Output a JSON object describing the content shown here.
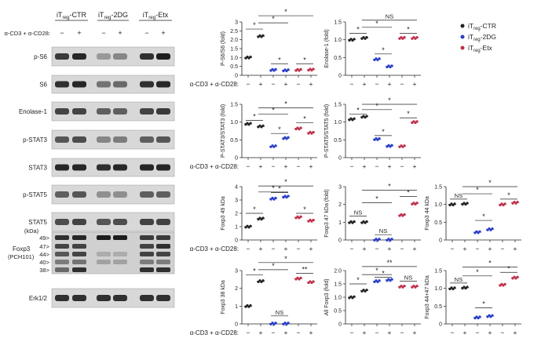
{
  "blot": {
    "groups": [
      {
        "name": "iTreg-CTR",
        "base": "iT",
        "sub": "reg",
        "suffix": "-CTR",
        "color": "#222222"
      },
      {
        "name": "iTreg-2DG",
        "base": "iT",
        "sub": "reg",
        "suffix": "-2DG",
        "color": "#2a3ec8"
      },
      {
        "name": "iTreg-Etx",
        "base": "iT",
        "sub": "reg",
        "suffix": "-Etx",
        "color": "#c0304a"
      }
    ],
    "treatment_label": "α-CD3 + α-CD28:",
    "signs": [
      "−",
      "+",
      "−",
      "+",
      "−",
      "+"
    ],
    "kda_header": "(kDa)",
    "rows": [
      {
        "label": "p-S6",
        "bands": [
          0.75,
          0.85,
          0.25,
          0.35,
          0.8,
          0.9
        ]
      },
      {
        "label": "S6",
        "bands": [
          0.8,
          0.85,
          0.45,
          0.5,
          0.8,
          0.85
        ]
      },
      {
        "label": "Enolase-1",
        "bands": [
          0.7,
          0.7,
          0.55,
          0.55,
          0.7,
          0.75
        ]
      },
      {
        "label": "p-STAT3",
        "bands": [
          0.6,
          0.65,
          0.35,
          0.4,
          0.55,
          0.6
        ]
      },
      {
        "label": "STAT3",
        "bands": [
          0.85,
          0.85,
          0.8,
          0.85,
          0.85,
          0.85
        ]
      },
      {
        "label": "p-STAT5",
        "bands": [
          0.55,
          0.6,
          0.3,
          0.3,
          0.55,
          0.55
        ]
      },
      {
        "label": "STAT5",
        "bands": [
          0.65,
          0.7,
          0.6,
          0.65,
          0.7,
          0.7
        ]
      }
    ],
    "foxp3": {
      "label_line1": "Foxp3",
      "label_line2": "(PCH101)",
      "markers": [
        "49>",
        "47>",
        "44>",
        "40>",
        "38>"
      ]
    },
    "erk": {
      "label": "Erk1/2",
      "bands": [
        0.8,
        0.8,
        0.8,
        0.8,
        0.8,
        0.8
      ]
    }
  },
  "legend": [
    {
      "base": "iT",
      "sub": "reg",
      "suffix": "-CTR",
      "color": "#222222"
    },
    {
      "base": "iT",
      "sub": "reg",
      "suffix": "-2DG",
      "color": "#2a3ec8"
    },
    {
      "base": "iT",
      "sub": "reg",
      "suffix": "-Etx",
      "color": "#c0304a"
    }
  ],
  "x_signs": [
    "−",
    "+",
    "−",
    "+",
    "−",
    "+"
  ],
  "x_axis_label": "α-CD3 + α-CD28:",
  "chart_data": [
    {
      "type": "scatter",
      "ylabel": "P-S6/S6 (fold)",
      "ylim": [
        0,
        3
      ],
      "yticks": [
        "0",
        "0.5",
        "1.0",
        "1.5",
        "2.0",
        "2.5",
        "3"
      ],
      "values": [
        1.0,
        2.2,
        0.3,
        0.28,
        0.3,
        0.32
      ],
      "sig": [
        {
          "from": 0,
          "to": 1,
          "y": 2.6,
          "label": "*"
        },
        {
          "from": 1,
          "to": 3,
          "y": 2.95,
          "label": "*"
        },
        {
          "from": 1,
          "to": 5,
          "y": 3.35,
          "label": "*"
        },
        {
          "from": 2,
          "to": 3,
          "y": 0.65,
          "label": "*"
        },
        {
          "from": 4,
          "to": 5,
          "y": 0.65,
          "label": "*"
        }
      ]
    },
    {
      "type": "scatter",
      "ylabel": "Enolase-1 (fold)",
      "ylim": [
        0,
        1.5
      ],
      "yticks": [
        "0",
        "0.5",
        "1.0",
        "1.5"
      ],
      "values": [
        1.0,
        1.05,
        0.45,
        0.25,
        1.05,
        1.05
      ],
      "sig": [
        {
          "from": 0,
          "to": 1,
          "y": 1.18,
          "label": "*"
        },
        {
          "from": 1,
          "to": 3,
          "y": 1.35,
          "label": "*"
        },
        {
          "from": 1,
          "to": 5,
          "y": 1.55,
          "label": "NS"
        },
        {
          "from": 2,
          "to": 3,
          "y": 0.6,
          "label": "*"
        },
        {
          "from": 4,
          "to": 5,
          "y": 1.18,
          "label": "*"
        }
      ]
    },
    {
      "type": "scatter",
      "ylabel": "P-STAT3/STAT3 (fold)",
      "ylim": [
        0,
        1.5
      ],
      "yticks": [
        "0",
        "0.5",
        "1.0",
        "1.5"
      ],
      "values": [
        0.95,
        0.88,
        0.32,
        0.55,
        0.82,
        0.7
      ],
      "sig": [
        {
          "from": 0,
          "to": 1,
          "y": 1.05,
          "label": "*"
        },
        {
          "from": 1,
          "to": 3,
          "y": 1.22,
          "label": "*"
        },
        {
          "from": 1,
          "to": 5,
          "y": 1.4,
          "label": "*"
        },
        {
          "from": 2,
          "to": 3,
          "y": 0.68,
          "label": "*"
        },
        {
          "from": 4,
          "to": 5,
          "y": 0.98,
          "label": "*"
        }
      ]
    },
    {
      "type": "scatter",
      "ylabel": "P-STAT5/STAT5 (fold)",
      "ylim": [
        0,
        1.5
      ],
      "yticks": [
        "0",
        "0.5",
        "1.0",
        "1.5"
      ],
      "values": [
        1.08,
        1.15,
        0.52,
        0.33,
        0.32,
        1.0
      ],
      "sig": [
        {
          "from": 0,
          "to": 1,
          "y": 1.22,
          "label": "*"
        },
        {
          "from": 1,
          "to": 3,
          "y": 1.35,
          "label": "*"
        },
        {
          "from": 1,
          "to": 5,
          "y": 1.5,
          "label": "*"
        },
        {
          "from": 2,
          "to": 3,
          "y": 0.62,
          "label": "*"
        },
        {
          "from": 4,
          "to": 5,
          "y": 1.12,
          "label": "*"
        }
      ]
    },
    {
      "type": "scatter",
      "ylabel": "Foxp3 49 kDa",
      "ylim": [
        0,
        4
      ],
      "yticks": [
        "0",
        "1",
        "2",
        "3",
        "4"
      ],
      "values": [
        1.0,
        1.6,
        3.1,
        3.25,
        1.7,
        1.45
      ],
      "sig": [
        {
          "from": 0,
          "to": 1,
          "y": 2.0,
          "label": "*"
        },
        {
          "from": 1,
          "to": 3,
          "y": 3.6,
          "label": "*"
        },
        {
          "from": 1,
          "to": 5,
          "y": 4.05,
          "label": "*"
        },
        {
          "from": 2,
          "to": 3,
          "y": 3.55,
          "label": "*"
        },
        {
          "from": 4,
          "to": 5,
          "y": 2.0,
          "label": "*"
        }
      ]
    },
    {
      "type": "scatter",
      "ylabel": "Foxp3 47 kDa (fold)",
      "ylim": [
        0,
        3
      ],
      "yticks": [
        "0",
        "1",
        "2",
        "3"
      ],
      "values": [
        1.0,
        1.0,
        0.02,
        0.02,
        1.4,
        2.05
      ],
      "sig": [
        {
          "from": 0,
          "to": 1,
          "y": 1.35,
          "label": "NS"
        },
        {
          "from": 1,
          "to": 3,
          "y": 2.1,
          "label": "*"
        },
        {
          "from": 1,
          "to": 5,
          "y": 2.8,
          "label": "*"
        },
        {
          "from": 2,
          "to": 3,
          "y": 0.3,
          "label": "NS"
        },
        {
          "from": 4,
          "to": 5,
          "y": 2.45,
          "label": "*"
        }
      ]
    },
    {
      "type": "scatter",
      "ylabel": "Foxp3 44 kDa",
      "ylim": [
        0,
        1.5
      ],
      "yticks": [
        "0",
        "0.5",
        "1.0",
        "1.5"
      ],
      "values": [
        1.0,
        1.02,
        0.22,
        0.3,
        1.0,
        1.05
      ],
      "sig": [
        {
          "from": 0,
          "to": 1,
          "y": 1.15,
          "label": "NS"
        },
        {
          "from": 1,
          "to": 3,
          "y": 1.3,
          "label": "*"
        },
        {
          "from": 1,
          "to": 5,
          "y": 1.5,
          "label": "*"
        },
        {
          "from": 2,
          "to": 3,
          "y": 0.55,
          "label": "*"
        },
        {
          "from": 4,
          "to": 5,
          "y": 1.15,
          "label": "*"
        }
      ]
    },
    {
      "type": "scatter",
      "ylabel": "Foxp3 38 kDa",
      "ylim": [
        0,
        3
      ],
      "yticks": [
        "0",
        "1",
        "2",
        "3"
      ],
      "values": [
        1.0,
        2.4,
        0.02,
        0.02,
        2.55,
        2.35
      ],
      "sig": [
        {
          "from": 0,
          "to": 1,
          "y": 2.75,
          "label": "*"
        },
        {
          "from": 1,
          "to": 3,
          "y": 3.05,
          "label": "*"
        },
        {
          "from": 1,
          "to": 5,
          "y": 3.45,
          "label": "*"
        },
        {
          "from": 2,
          "to": 3,
          "y": 0.45,
          "label": "NS"
        },
        {
          "from": 4,
          "to": 5,
          "y": 2.85,
          "label": "**"
        }
      ]
    },
    {
      "type": "scatter",
      "ylabel": "All Foxp3 (fold)",
      "ylim": [
        0,
        2
      ],
      "yticks": [
        "0",
        "0.5",
        "1.0",
        "1.5",
        "2.0"
      ],
      "values": [
        1.0,
        1.25,
        1.6,
        1.65,
        1.4,
        1.4
      ],
      "sig": [
        {
          "from": 0,
          "to": 1,
          "y": 1.5,
          "label": "*"
        },
        {
          "from": 1,
          "to": 3,
          "y": 1.85,
          "label": "*"
        },
        {
          "from": 1,
          "to": 5,
          "y": 2.15,
          "label": "**"
        },
        {
          "from": 2,
          "to": 3,
          "y": 1.75,
          "label": "*"
        },
        {
          "from": 4,
          "to": 5,
          "y": 1.6,
          "label": "NS"
        }
      ]
    },
    {
      "type": "scatter",
      "ylabel": "Foxp3 44+47 kDa",
      "ylim": [
        0,
        1.5
      ],
      "yticks": [
        "0",
        "0.5",
        "1.0",
        "1.5"
      ],
      "values": [
        1.0,
        1.02,
        0.18,
        0.22,
        1.1,
        1.3
      ],
      "sig": [
        {
          "from": 0,
          "to": 1,
          "y": 1.15,
          "label": "NS"
        },
        {
          "from": 1,
          "to": 3,
          "y": 1.35,
          "label": "*"
        },
        {
          "from": 1,
          "to": 5,
          "y": 1.6,
          "label": "*"
        },
        {
          "from": 2,
          "to": 3,
          "y": 0.45,
          "label": "*"
        },
        {
          "from": 4,
          "to": 5,
          "y": 1.45,
          "label": "*"
        }
      ]
    }
  ]
}
